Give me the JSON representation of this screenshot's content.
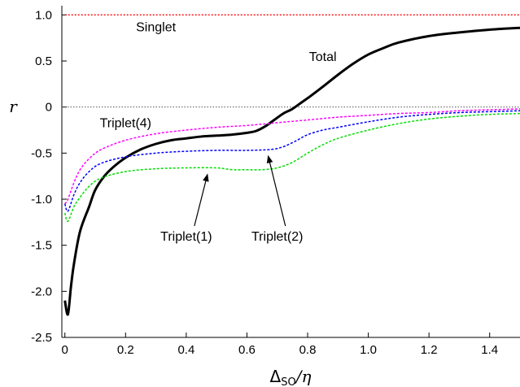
{
  "chart_data": {
    "type": "line",
    "title": "",
    "xlabel": {
      "main": "Δ",
      "sub": "SO",
      "tail": "/η"
    },
    "ylabel": "r",
    "xlim": [
      -0.01,
      1.5
    ],
    "ylim": [
      -2.5,
      1.1
    ],
    "xticks": [
      "0",
      "0.2",
      "0.4",
      "0.6",
      "0.8",
      "1.0",
      "1.2",
      "1.4"
    ],
    "xtick_values": [
      0,
      0.2,
      0.4,
      0.6,
      0.8,
      1.0,
      1.2,
      1.4
    ],
    "yticks": [
      "1.0",
      "0.5",
      "0",
      "-0.5",
      "-1.0",
      "-1.5",
      "-2.0",
      "-2.5"
    ],
    "ytick_values": [
      1.0,
      0.5,
      0,
      -0.5,
      -1.0,
      -1.5,
      -2.0,
      -2.5
    ],
    "grid": false,
    "series": [
      {
        "name": "Singlet",
        "color": "#ff0000",
        "style": "dotted",
        "width": 1.3,
        "x": [
          0,
          1.5
        ],
        "y": [
          1.0,
          1.0
        ]
      },
      {
        "name": "Total",
        "color": "#000000",
        "style": "solid",
        "width": 3,
        "x": [
          0,
          0.01,
          0.02,
          0.03,
          0.05,
          0.08,
          0.1,
          0.13,
          0.16,
          0.2,
          0.25,
          0.3,
          0.35,
          0.4,
          0.45,
          0.5,
          0.55,
          0.6,
          0.63,
          0.66,
          0.69,
          0.72,
          0.75,
          0.78,
          0.81,
          0.85,
          0.9,
          0.95,
          1.0,
          1.05,
          1.1,
          1.2,
          1.3,
          1.4,
          1.5
        ],
        "y": [
          -2.1,
          -2.25,
          -1.95,
          -1.7,
          -1.35,
          -1.08,
          -0.9,
          -0.75,
          -0.65,
          -0.55,
          -0.46,
          -0.4,
          -0.36,
          -0.34,
          -0.32,
          -0.31,
          -0.3,
          -0.28,
          -0.26,
          -0.21,
          -0.14,
          -0.07,
          -0.02,
          0.05,
          0.12,
          0.22,
          0.35,
          0.47,
          0.57,
          0.64,
          0.7,
          0.77,
          0.81,
          0.84,
          0.86
        ]
      },
      {
        "name": "Triplet(4)",
        "color": "#ff00ff",
        "style": "dashed",
        "width": 1.5,
        "x": [
          0,
          0.01,
          0.03,
          0.05,
          0.08,
          0.12,
          0.2,
          0.3,
          0.4,
          0.5,
          0.6,
          0.7,
          0.8,
          0.9,
          1.0,
          1.1,
          1.2,
          1.3,
          1.4,
          1.5
        ],
        "y": [
          -1.05,
          -1.0,
          -0.82,
          -0.68,
          -0.56,
          -0.46,
          -0.36,
          -0.29,
          -0.25,
          -0.22,
          -0.2,
          -0.17,
          -0.14,
          -0.11,
          -0.09,
          -0.07,
          -0.06,
          -0.04,
          -0.03,
          -0.02
        ]
      },
      {
        "name": "Triplet(2)",
        "color": "#0000ff",
        "style": "dashed",
        "width": 1.5,
        "x": [
          0,
          0.01,
          0.03,
          0.05,
          0.08,
          0.12,
          0.2,
          0.3,
          0.4,
          0.5,
          0.6,
          0.68,
          0.72,
          0.76,
          0.8,
          0.85,
          0.9,
          1.0,
          1.1,
          1.2,
          1.3,
          1.4,
          1.5
        ],
        "y": [
          -1.05,
          -1.13,
          -0.95,
          -0.82,
          -0.7,
          -0.61,
          -0.54,
          -0.5,
          -0.48,
          -0.47,
          -0.47,
          -0.46,
          -0.43,
          -0.37,
          -0.3,
          -0.25,
          -0.22,
          -0.16,
          -0.11,
          -0.08,
          -0.06,
          -0.05,
          -0.04
        ]
      },
      {
        "name": "Triplet(1)",
        "color": "#00dd00",
        "style": "dashed",
        "width": 1.5,
        "x": [
          0,
          0.01,
          0.03,
          0.05,
          0.08,
          0.12,
          0.2,
          0.3,
          0.4,
          0.5,
          0.55,
          0.6,
          0.65,
          0.7,
          0.75,
          0.8,
          0.85,
          0.9,
          1.0,
          1.1,
          1.2,
          1.3,
          1.4,
          1.5
        ],
        "y": [
          -1.15,
          -1.24,
          -1.08,
          -0.98,
          -0.86,
          -0.77,
          -0.7,
          -0.67,
          -0.66,
          -0.66,
          -0.68,
          -0.68,
          -0.68,
          -0.66,
          -0.6,
          -0.5,
          -0.41,
          -0.34,
          -0.25,
          -0.18,
          -0.13,
          -0.1,
          -0.08,
          -0.07
        ]
      }
    ],
    "reference_lines": [
      {
        "y": 0,
        "color": "#555555",
        "style": "dotted"
      }
    ],
    "annotations": [
      {
        "text": "Singlet",
        "x": 0.3,
        "y": 0.82
      },
      {
        "text": "Total",
        "x": 0.85,
        "y": 0.5
      },
      {
        "text": "Triplet(4)",
        "x": 0.2,
        "y": -0.22
      },
      {
        "text": "Triplet(1)",
        "x": 0.4,
        "y": -1.45,
        "arrow_to": [
          0.47,
          -0.73
        ]
      },
      {
        "text": "Triplet(2)",
        "x": 0.7,
        "y": -1.45,
        "arrow_to": [
          0.67,
          -0.53
        ]
      }
    ]
  }
}
